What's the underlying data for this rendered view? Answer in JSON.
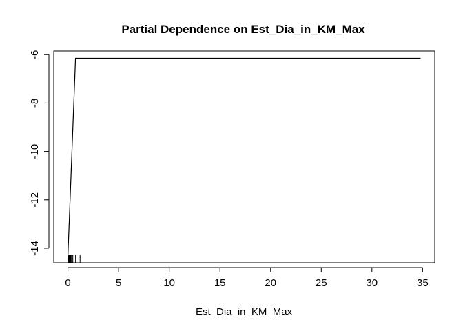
{
  "chart_data": {
    "type": "line",
    "title": "Partial Dependence on  Est_Dia_in_KM_Max",
    "xlabel": "Est_Dia_in_KM_Max",
    "ylabel": "",
    "xlim": [
      -1.4,
      36.2
    ],
    "ylim": [
      -14.6,
      -5.85
    ],
    "x_ticks": [
      0,
      5,
      10,
      15,
      20,
      25,
      30,
      35
    ],
    "y_ticks": [
      -14,
      -12,
      -10,
      -8,
      -6
    ],
    "x_tick_labels": [
      "0",
      "5",
      "10",
      "15",
      "20",
      "25",
      "30",
      "35"
    ],
    "y_tick_labels": [
      "-14",
      "-12",
      "-10",
      "-8",
      "-6"
    ],
    "grid": false,
    "series": [
      {
        "x": [
          0.0,
          0.75,
          34.8
        ],
        "y": [
          -14.3,
          -6.15,
          -6.15
        ]
      }
    ],
    "rug": [
      0.05,
      0.1,
      0.15,
      0.2,
      0.25,
      0.3,
      0.38,
      0.48,
      0.6,
      0.75,
      1.2
    ]
  }
}
